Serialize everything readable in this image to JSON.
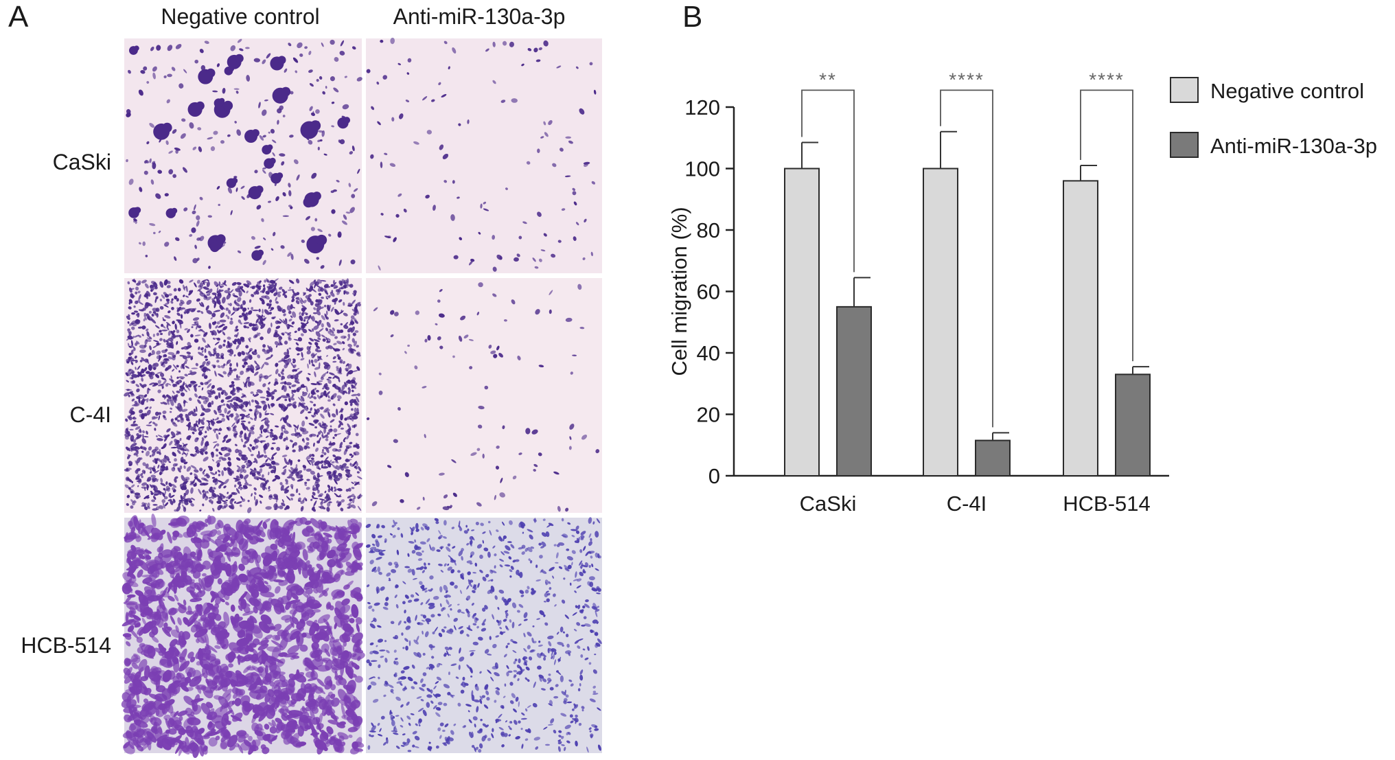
{
  "panel_a": {
    "letter": "A",
    "columns": [
      "Negative control",
      "Anti-miR-130a-3p"
    ],
    "rows": [
      "CaSki",
      "C-4I",
      "HCB-514"
    ]
  },
  "panel_b": {
    "letter": "B"
  },
  "colors": {
    "negative_control": "#d9d9d9",
    "anti_mir": "#7a7a7a",
    "bar_stroke": "#2b2b2b",
    "stain_purple": "#4b2a8a",
    "stain_violet": "#7b3fb3",
    "slide_pink": "#f3e6ee",
    "slide_lavender": "#dcd6e6"
  },
  "icons": [
    "micrograph-image"
  ],
  "chart_data": {
    "type": "bar",
    "title": "",
    "xlabel": "",
    "ylabel": "Cell migration (%)",
    "ylim": [
      0,
      120
    ],
    "yticks": [
      0,
      20,
      40,
      60,
      80,
      100,
      120
    ],
    "categories": [
      "CaSki",
      "C-4I",
      "HCB-514"
    ],
    "series": [
      {
        "name": "Negative control",
        "values": [
          100,
          100,
          96
        ],
        "errors": [
          8.5,
          12,
          5
        ],
        "color": "#d9d9d9"
      },
      {
        "name": "Anti-miR-130a-3p",
        "values": [
          55,
          11.5,
          33
        ],
        "errors": [
          9.5,
          2.5,
          2.5
        ],
        "color": "#7a7a7a"
      }
    ],
    "significance": [
      "**",
      "****",
      "****"
    ],
    "legend_position": "top-right",
    "grid": false
  }
}
